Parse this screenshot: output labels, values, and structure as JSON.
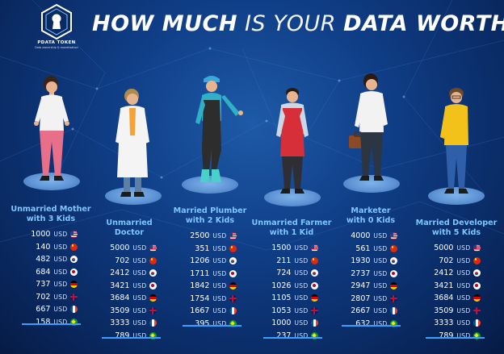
{
  "header": {
    "logo_name": "PDATA TOKEN",
    "logo_tagline": "Data ownership & monetization",
    "title": {
      "how_much": "HOW MUCH",
      "is_your": "IS YOUR",
      "data_worth": "DATA WORTH?"
    }
  },
  "currency": "USD",
  "flags": [
    "us-flag",
    "china-flag",
    "korea-flag",
    "japan-flag",
    "germany-flag",
    "uk-flag",
    "france-flag",
    "brazil-flag"
  ],
  "colors": {
    "accent": "#7ec6ff",
    "underline": "#3aa0ff",
    "bg_top": "#1e5aa8",
    "bg_bottom": "#061b45"
  },
  "profiles": [
    {
      "line1": "Unmarried Mother",
      "line2": "with 3 Kids",
      "values": [
        "1000",
        "140",
        "482",
        "684",
        "737",
        "702",
        "667",
        "158"
      ]
    },
    {
      "line1": "Unmarried",
      "line2": "Doctor",
      "values": [
        "5000",
        "702",
        "2412",
        "3421",
        "3684",
        "3509",
        "3333",
        "789"
      ]
    },
    {
      "line1": "Married Plumber",
      "line2": "with 2 Kids",
      "values": [
        "2500",
        "351",
        "1206",
        "1711",
        "1842",
        "1754",
        "1667",
        "395"
      ]
    },
    {
      "line1": "Unmarried Farmer",
      "line2": "with 1 Kid",
      "values": [
        "1500",
        "211",
        "724",
        "1026",
        "1105",
        "1053",
        "1000",
        "237"
      ]
    },
    {
      "line1": "Marketer",
      "line2": "with 0 Kids",
      "values": [
        "4000",
        "561",
        "1930",
        "2737",
        "2947",
        "2807",
        "2667",
        "632"
      ]
    },
    {
      "line1": "Married Developer",
      "line2": "with 5 Kids",
      "values": [
        "5000",
        "702",
        "2412",
        "3421",
        "3684",
        "3509",
        "3333",
        "789"
      ]
    }
  ]
}
